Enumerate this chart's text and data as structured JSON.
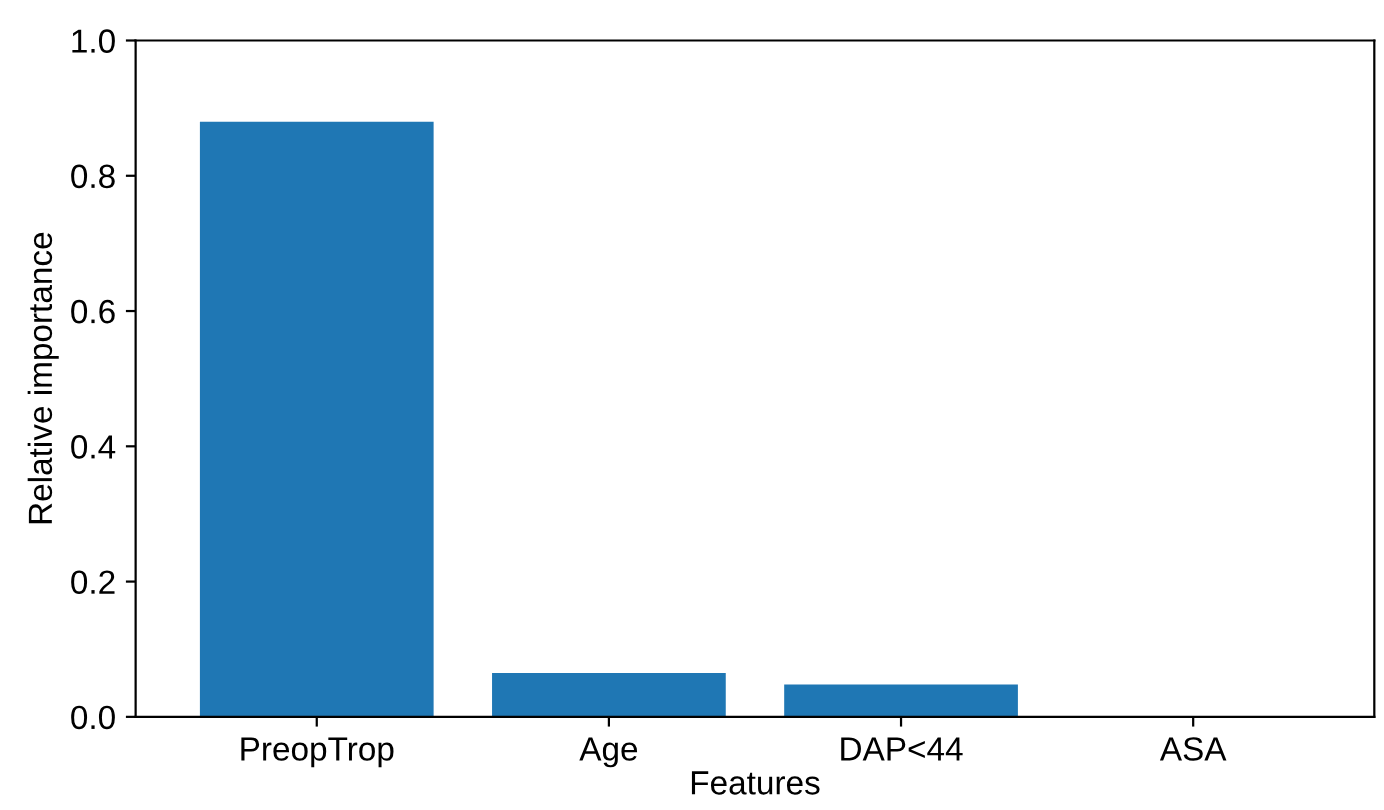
{
  "chart_data": {
    "type": "bar",
    "xlabel": "Features",
    "ylabel": "Relative importance",
    "categories": [
      "PreopTrop",
      "Age",
      "DAP<44",
      "ASA"
    ],
    "values": [
      0.88,
      0.065,
      0.048,
      0.0
    ],
    "color": "#1f77b4",
    "ylim": [
      0,
      1.0
    ],
    "yticks": [
      {
        "value": 0,
        "label": "0.0"
      },
      0.2,
      0.4,
      0.6,
      0.8,
      {
        "value": 1.0,
        "label": "1.0"
      }
    ],
    "grid": false
  }
}
